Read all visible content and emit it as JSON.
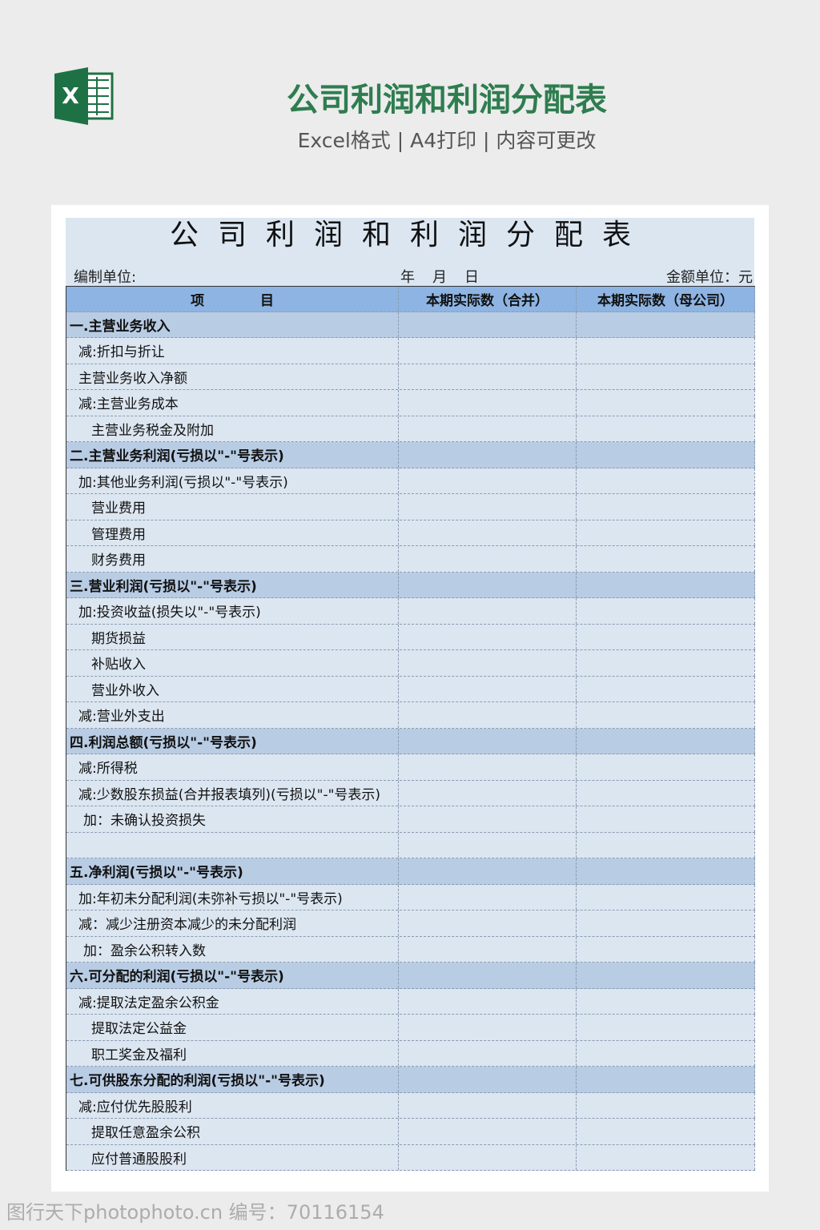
{
  "header": {
    "title": "公司利润和利润分配表",
    "subtitle": "Excel格式 | A4打印 | 内容可更改"
  },
  "sheet": {
    "title": "公司利润和利润分配表",
    "unit_label": "编制单位:",
    "year": "年",
    "month": "月",
    "day": "日",
    "amount_unit": "金额单位：元",
    "columns": [
      "项目",
      "本期实际数（合并）",
      "本期实际数（母公司）"
    ],
    "rows": [
      "一.主营业务收入",
      "减:折扣与折让",
      "主营业务收入净额",
      "减:主营业务成本",
      "主营业务税金及附加",
      "二.主营业务利润(亏损以\"-\"号表示)",
      "加:其他业务利润(亏损以\"-\"号表示)",
      "营业费用",
      "管理费用",
      "财务费用",
      "三.营业利润(亏损以\"-\"号表示)",
      "加:投资收益(损失以\"-\"号表示)",
      "期货损益",
      "补贴收入",
      "营业外收入",
      "减:营业外支出",
      "四.利润总额(亏损以\"-\"号表示)",
      "减:所得税",
      "减:少数股东损益(合并报表填列)(亏损以\"-\"号表示)",
      "加：未确认投资损失",
      null,
      "五.净利润(亏损以\"-\"号表示)",
      "加:年初未分配利润(未弥补亏损以\"-\"号表示)",
      "减：减少注册资本减少的未分配利润",
      "加：盈余公积转入数",
      "六.可分配的利润(亏损以\"-\"号表示)",
      "减:提取法定盈余公积金",
      "提取法定公益金",
      "职工奖金及福利",
      "七.可供股东分配的利润(亏损以\"-\"号表示)",
      "减:应付优先股股利",
      "提取任意盈余公积",
      "应付普通股股利"
    ]
  },
  "footer": {
    "watermark": "图行天下photophoto.cn 编号：70116154"
  }
}
